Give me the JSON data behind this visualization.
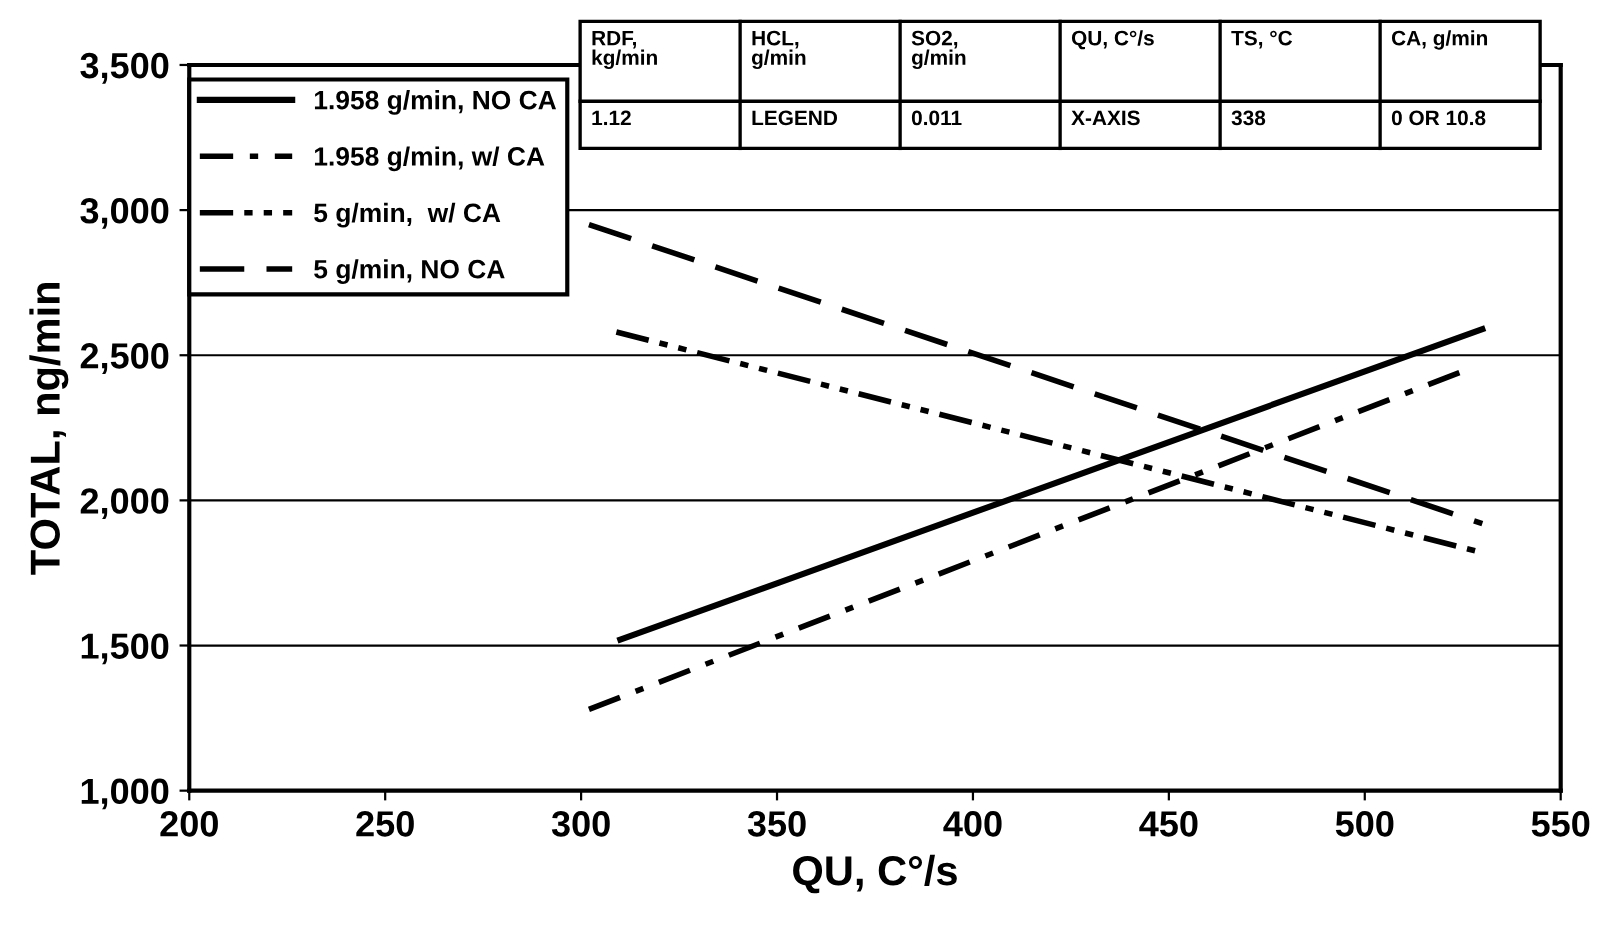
{
  "chart_data": {
    "type": "line",
    "xlabel": "QU, C°/s",
    "ylabel": "TOTAL, ng/min",
    "xlim": [
      200,
      550
    ],
    "xticks": [
      200,
      250,
      300,
      350,
      400,
      450,
      500,
      550
    ],
    "ylim": [
      1000,
      3500
    ],
    "yticks": [
      {
        "value": 1000,
        "label": "1,000"
      },
      {
        "value": 1500,
        "label": "1,500"
      },
      {
        "value": 2000,
        "label": "2,000"
      },
      {
        "value": 2500,
        "label": "2,500"
      },
      {
        "value": 3000,
        "label": "3,000"
      },
      {
        "value": 3500,
        "label": "3,500"
      }
    ],
    "grid": "y",
    "legend": "top left",
    "marker": "none",
    "series": [
      {
        "name": "1.958 g/min, NO CA",
        "color": "#000000",
        "line_style": "solid",
        "x": [
          310,
          530
        ],
        "values": [
          1520,
          2590
        ]
      },
      {
        "name": "1.958 g/min, w/ CA",
        "color": "#000000",
        "line_style": "dashdot",
        "x": [
          302,
          526
        ],
        "values": [
          1280,
          2450
        ]
      },
      {
        "name": "5 g/min,  w/ CA",
        "color": "#000000",
        "line_style": "dashdotdot",
        "x": [
          309,
          530
        ],
        "values": [
          2580,
          1820
        ]
      },
      {
        "name": "5 g/min, NO CA",
        "color": "#000000",
        "line_style": "dashed",
        "x": [
          302,
          530
        ],
        "values": [
          2950,
          1920
        ]
      }
    ],
    "annotations": [
      "RDF,\nkg/min",
      "HCL,\ng/min",
      "SO2,\ng/min",
      "QU, C°/s",
      "TS, °C",
      "CA, g/min",
      "1.12",
      "LEGEND",
      "0.011",
      "X-AXIS",
      "338",
      "0 OR 10.8"
    ]
  }
}
